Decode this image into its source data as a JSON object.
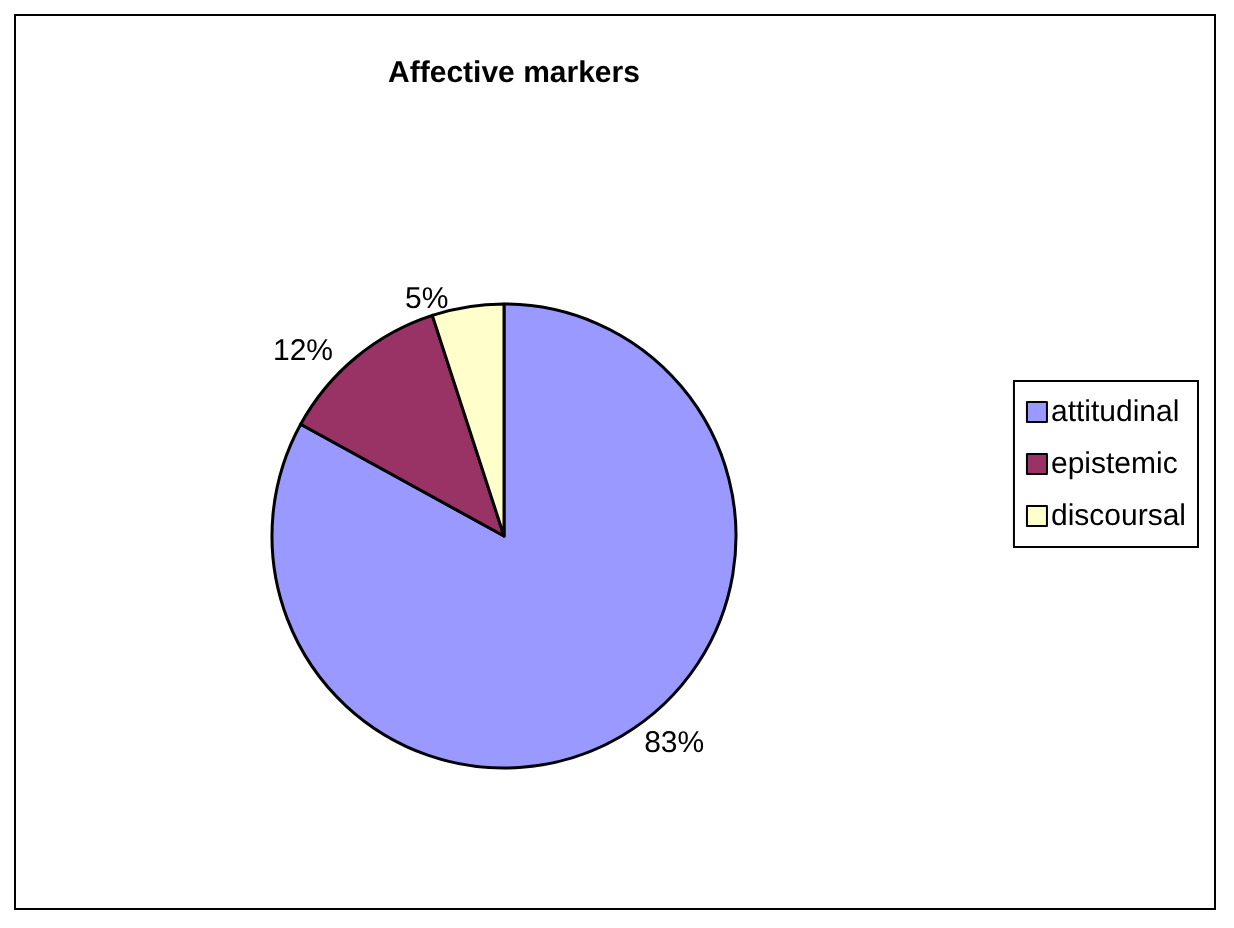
{
  "chart_data": {
    "type": "pie",
    "title": "Affective markers",
    "categories": [
      "attitudinal",
      "epistemic",
      "discoursal"
    ],
    "values": [
      83,
      12,
      5
    ],
    "value_labels": [
      "83%",
      "12%",
      "5%"
    ],
    "colors": [
      "#9999ff",
      "#993366",
      "#ffffcc"
    ],
    "legend": "right"
  }
}
